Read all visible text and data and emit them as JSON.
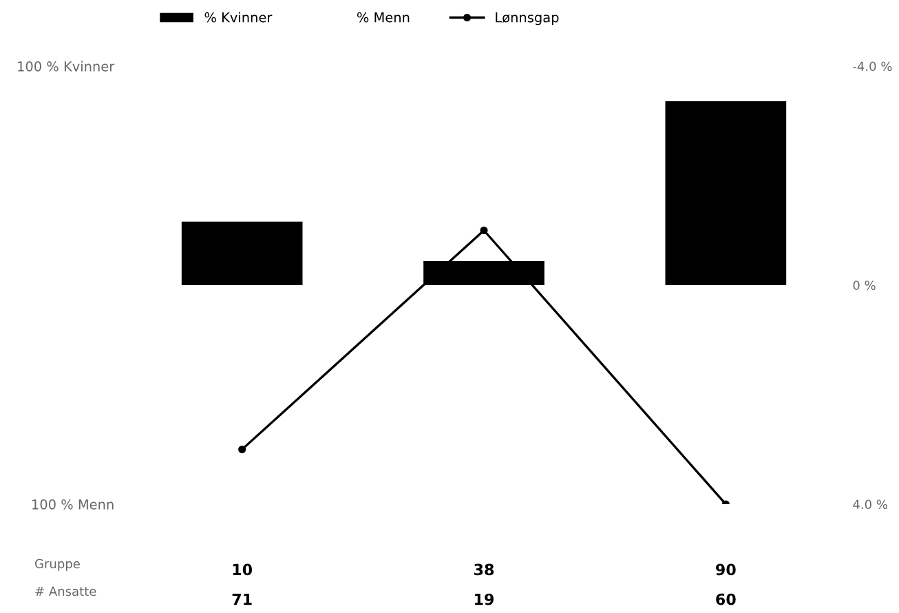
{
  "chart_data": {
    "type": "bar",
    "categories": [
      "10",
      "38",
      "90"
    ],
    "series": [
      {
        "name": "% Kvinner",
        "color": "#000000",
        "values": [
          29,
          11,
          84
        ]
      },
      {
        "name": "% Menn",
        "values": [
          null,
          null,
          null
        ]
      },
      {
        "name": "Lønnsgap",
        "type": "line",
        "axis": "y2",
        "color": "#000000",
        "marker": "circle",
        "values": [
          3.0,
          -1.0,
          4.0
        ]
      }
    ],
    "ylim": [
      -100,
      100
    ],
    "yticks": [
      {
        "value": -100,
        "label": "100 % Menn"
      },
      {
        "value": 100,
        "label": "100 % Kvinner"
      }
    ],
    "y2lim": [
      4,
      -4
    ],
    "y2ticks": [
      {
        "value": -4,
        "label": "-4.0 %"
      },
      {
        "value": 0,
        "label": "0 %"
      },
      {
        "value": 4,
        "label": "4.0 %"
      }
    ],
    "annotations": [
      "Gruppe",
      "# Ansatte",
      "71",
      "19",
      "60"
    ],
    "legend": "top",
    "grid": false
  }
}
